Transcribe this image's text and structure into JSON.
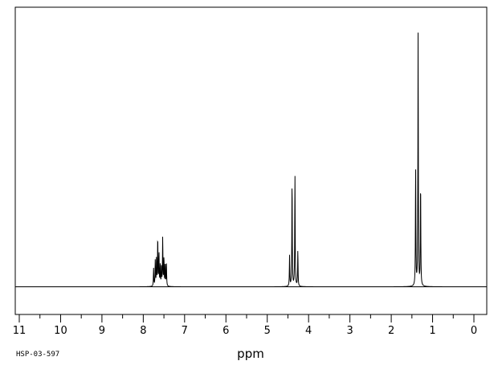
{
  "chart_data": {
    "type": "line",
    "title": "",
    "xlabel": "ppm",
    "ylabel": "",
    "source_id": "HSP-03-597",
    "xlim": [
      11,
      0
    ],
    "x_reversed": true,
    "x_ticks": [
      11,
      10,
      9,
      8,
      7,
      6,
      5,
      4,
      3,
      2,
      1,
      0
    ],
    "ylim": [
      0,
      1.0
    ],
    "grid": false,
    "legend": "none",
    "line_color": "#000000",
    "peaks": [
      {
        "ppm": 7.75,
        "height": 0.07
      },
      {
        "ppm": 7.71,
        "height": 0.1
      },
      {
        "ppm": 7.68,
        "height": 0.11
      },
      {
        "ppm": 7.65,
        "height": 0.19
      },
      {
        "ppm": 7.62,
        "height": 0.13
      },
      {
        "ppm": 7.59,
        "height": 0.08
      },
      {
        "ppm": 7.56,
        "height": 0.07
      },
      {
        "ppm": 7.53,
        "height": 0.19
      },
      {
        "ppm": 7.5,
        "height": 0.11
      },
      {
        "ppm": 7.47,
        "height": 0.09
      },
      {
        "ppm": 7.44,
        "height": 0.09
      },
      {
        "ppm": 4.46,
        "height": 0.12
      },
      {
        "ppm": 4.4,
        "height": 0.42
      },
      {
        "ppm": 4.33,
        "height": 0.44
      },
      {
        "ppm": 4.26,
        "height": 0.14
      },
      {
        "ppm": 1.41,
        "height": 0.46
      },
      {
        "ppm": 1.35,
        "height": 1.0
      },
      {
        "ppm": 1.29,
        "height": 0.41
      }
    ]
  }
}
